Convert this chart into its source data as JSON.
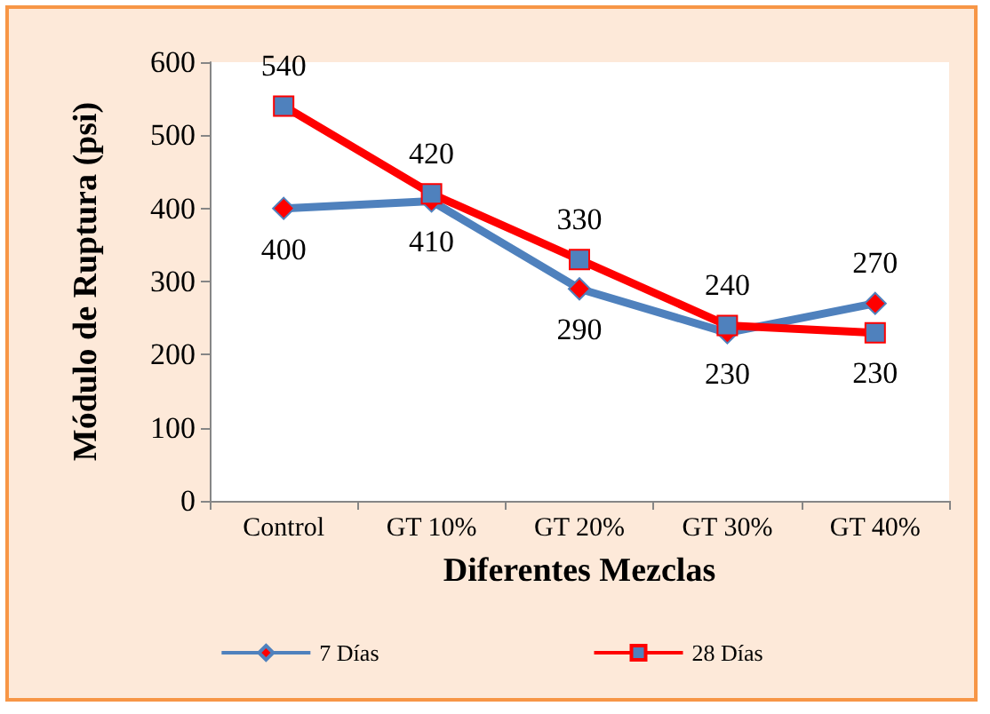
{
  "chart_data": {
    "type": "line",
    "xlabel": "Diferentes Mezclas",
    "ylabel": "Módulo de Ruptura (psi)",
    "categories": [
      "Control",
      "GT 10%",
      "GT 20%",
      "GT 30%",
      "GT 40%"
    ],
    "series": [
      {
        "name": "7 Días",
        "color": "#4f81bd",
        "marker": "diamond",
        "values": [
          400,
          410,
          290,
          230,
          270
        ]
      },
      {
        "name": "28 Días",
        "color": "#ff0000",
        "marker": "square",
        "values": [
          540,
          420,
          330,
          240,
          230
        ]
      }
    ],
    "ylim": [
      0,
      600
    ],
    "yticks": [
      0,
      100,
      200,
      300,
      400,
      500,
      600
    ],
    "data_labels": true,
    "legend": "bottom"
  }
}
